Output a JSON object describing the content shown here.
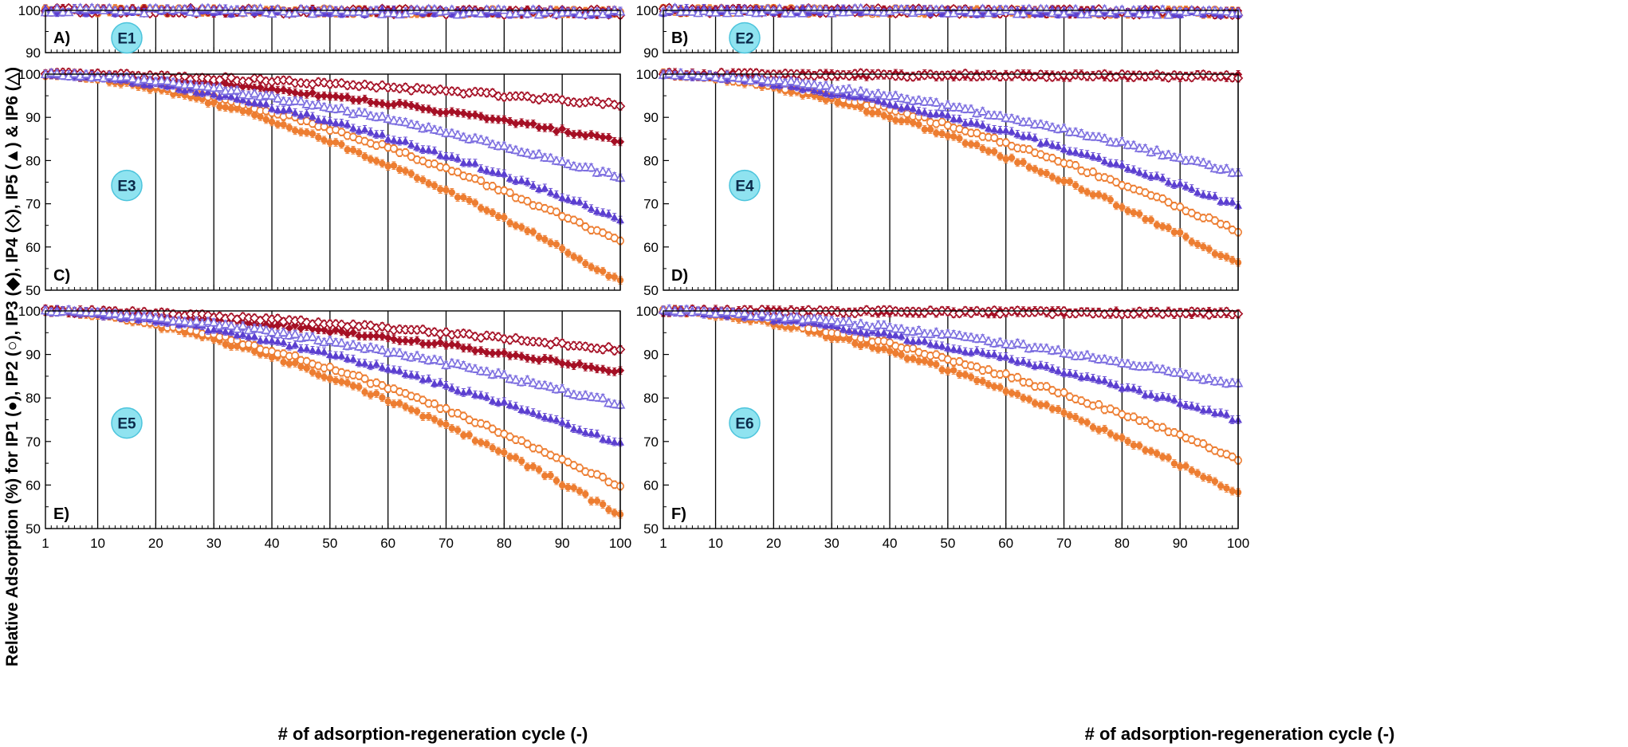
{
  "ylabel": "Relative Adsorption (%) for IP1 (●), IP2 (○), IP3 (◆), IP4 (◇), IP5 (▲) & IP6 (△)",
  "xlabel": "# of adsorption-regeneration cycle (-)",
  "x_ticks": [
    "1",
    "10",
    "20",
    "30",
    "40",
    "50",
    "60",
    "70",
    "80",
    "90",
    "100"
  ],
  "colors": {
    "IP1": "#ed7d31",
    "IP2": "#ed7d31",
    "IP3": "#a50f24",
    "IP4": "#a50f24",
    "IP5": "#5b3fd0",
    "IP6": "#7d6fe0",
    "bubble_fill": "#8fe3f0",
    "bubble_stroke": "#4cc4dc"
  },
  "panels": [
    {
      "letter": "A)",
      "tag": "E1"
    },
    {
      "letter": "B)",
      "tag": "E2"
    },
    {
      "letter": "C)",
      "tag": "E3"
    },
    {
      "letter": "D)",
      "tag": "E4"
    },
    {
      "letter": "E)",
      "tag": "E5"
    },
    {
      "letter": "F)",
      "tag": "E6"
    }
  ],
  "chart_data": [
    {
      "type": "scatter",
      "panel": "A",
      "tag": "E1",
      "xlim": [
        1,
        100
      ],
      "ylim": [
        90,
        100
      ],
      "y_ticks": [
        "90",
        "100"
      ],
      "x_gridlines": [
        10,
        20,
        30,
        40,
        50,
        60,
        70,
        80,
        90,
        100
      ],
      "error_bars": true,
      "series": [
        {
          "name": "IP1",
          "marker": "filled-circle",
          "start": 100,
          "end": 99.5,
          "power": 1
        },
        {
          "name": "IP2",
          "marker": "open-circle",
          "start": 100,
          "end": 99.5,
          "power": 1
        },
        {
          "name": "IP3",
          "marker": "filled-diamond",
          "start": 100,
          "end": 99.5,
          "power": 1
        },
        {
          "name": "IP4",
          "marker": "open-diamond",
          "start": 100,
          "end": 99.5,
          "power": 1
        },
        {
          "name": "IP5",
          "marker": "filled-triangle",
          "start": 100,
          "end": 99.5,
          "power": 1
        },
        {
          "name": "IP6",
          "marker": "open-triangle",
          "start": 100,
          "end": 99.5,
          "power": 1
        }
      ]
    },
    {
      "type": "scatter",
      "panel": "B",
      "tag": "E2",
      "xlim": [
        1,
        100
      ],
      "ylim": [
        90,
        100
      ],
      "y_ticks": [
        "90",
        "100"
      ],
      "x_gridlines": [
        10,
        20,
        30,
        40,
        50,
        60,
        70,
        80,
        90,
        100
      ],
      "error_bars": true,
      "series": [
        {
          "name": "IP1",
          "marker": "filled-circle",
          "start": 100,
          "end": 99.5,
          "power": 1
        },
        {
          "name": "IP2",
          "marker": "open-circle",
          "start": 100,
          "end": 99.5,
          "power": 1
        },
        {
          "name": "IP3",
          "marker": "filled-diamond",
          "start": 100,
          "end": 99.5,
          "power": 1
        },
        {
          "name": "IP4",
          "marker": "open-diamond",
          "start": 100,
          "end": 99.5,
          "power": 1
        },
        {
          "name": "IP5",
          "marker": "filled-triangle",
          "start": 100,
          "end": 99.5,
          "power": 1
        },
        {
          "name": "IP6",
          "marker": "open-triangle",
          "start": 100,
          "end": 99.5,
          "power": 1
        }
      ]
    },
    {
      "type": "scatter",
      "panel": "C",
      "tag": "E3",
      "xlim": [
        1,
        100
      ],
      "ylim": [
        50,
        100
      ],
      "y_ticks": [
        "50",
        "60",
        "70",
        "80",
        "90",
        "100"
      ],
      "x_gridlines": [
        10,
        20,
        30,
        40,
        50,
        60,
        70,
        80,
        90,
        100
      ],
      "error_bars": true,
      "series": [
        {
          "name": "IP1",
          "marker": "filled-circle",
          "start": 100,
          "end": 52,
          "power": 1.6
        },
        {
          "name": "IP2",
          "marker": "open-circle",
          "start": 100,
          "end": 61,
          "power": 1.6
        },
        {
          "name": "IP3",
          "marker": "filled-diamond",
          "start": 100,
          "end": 84.5,
          "power": 1.6
        },
        {
          "name": "IP4",
          "marker": "open-diamond",
          "start": 100,
          "end": 93,
          "power": 1.6
        },
        {
          "name": "IP5",
          "marker": "filled-triangle",
          "start": 100,
          "end": 66.5,
          "power": 1.6
        },
        {
          "name": "IP6",
          "marker": "open-triangle",
          "start": 100,
          "end": 76,
          "power": 1.6
        }
      ]
    },
    {
      "type": "scatter",
      "panel": "D",
      "tag": "E4",
      "xlim": [
        1,
        100
      ],
      "ylim": [
        50,
        100
      ],
      "y_ticks": [
        "50",
        "60",
        "70",
        "80",
        "90",
        "100"
      ],
      "x_gridlines": [
        10,
        20,
        30,
        40,
        50,
        60,
        70,
        80,
        90,
        100
      ],
      "error_bars": true,
      "series": [
        {
          "name": "IP1",
          "marker": "filled-circle",
          "start": 100,
          "end": 56,
          "power": 1.6
        },
        {
          "name": "IP2",
          "marker": "open-circle",
          "start": 100,
          "end": 63.5,
          "power": 1.6
        },
        {
          "name": "IP3",
          "marker": "filled-diamond",
          "start": 100,
          "end": 99.5,
          "power": 1
        },
        {
          "name": "IP4",
          "marker": "open-diamond",
          "start": 100,
          "end": 99.5,
          "power": 1
        },
        {
          "name": "IP5",
          "marker": "filled-triangle",
          "start": 100,
          "end": 69.5,
          "power": 1.6
        },
        {
          "name": "IP6",
          "marker": "open-triangle",
          "start": 100,
          "end": 77,
          "power": 1.6
        }
      ]
    },
    {
      "type": "scatter",
      "panel": "E",
      "tag": "E5",
      "xlim": [
        1,
        100
      ],
      "ylim": [
        50,
        100
      ],
      "y_ticks": [
        "50",
        "60",
        "70",
        "80",
        "90",
        "100"
      ],
      "x_gridlines": [
        10,
        20,
        30,
        40,
        50,
        60,
        70,
        80,
        90,
        100
      ],
      "error_bars": true,
      "series": [
        {
          "name": "IP1",
          "marker": "filled-circle",
          "start": 100,
          "end": 53,
          "power": 1.6
        },
        {
          "name": "IP2",
          "marker": "open-circle",
          "start": 100,
          "end": 59.5,
          "power": 1.6
        },
        {
          "name": "IP3",
          "marker": "filled-diamond",
          "start": 100,
          "end": 86,
          "power": 1.6
        },
        {
          "name": "IP4",
          "marker": "open-diamond",
          "start": 100,
          "end": 91,
          "power": 1.6
        },
        {
          "name": "IP5",
          "marker": "filled-triangle",
          "start": 100,
          "end": 69.5,
          "power": 1.6
        },
        {
          "name": "IP6",
          "marker": "open-triangle",
          "start": 100,
          "end": 78.5,
          "power": 1.6
        }
      ]
    },
    {
      "type": "scatter",
      "panel": "F",
      "tag": "E6",
      "xlim": [
        1,
        100
      ],
      "ylim": [
        50,
        100
      ],
      "y_ticks": [
        "50",
        "60",
        "70",
        "80",
        "90",
        "100"
      ],
      "x_gridlines": [
        10,
        20,
        30,
        40,
        50,
        60,
        70,
        80,
        90,
        100
      ],
      "error_bars": true,
      "series": [
        {
          "name": "IP1",
          "marker": "filled-circle",
          "start": 100,
          "end": 58,
          "power": 1.6
        },
        {
          "name": "IP2",
          "marker": "open-circle",
          "start": 100,
          "end": 66,
          "power": 1.6
        },
        {
          "name": "IP3",
          "marker": "filled-diamond",
          "start": 100,
          "end": 99.5,
          "power": 1
        },
        {
          "name": "IP4",
          "marker": "open-diamond",
          "start": 100,
          "end": 99.5,
          "power": 1
        },
        {
          "name": "IP5",
          "marker": "filled-triangle",
          "start": 100,
          "end": 75,
          "power": 1.6
        },
        {
          "name": "IP6",
          "marker": "open-triangle",
          "start": 100,
          "end": 83,
          "power": 1.6
        }
      ]
    }
  ]
}
